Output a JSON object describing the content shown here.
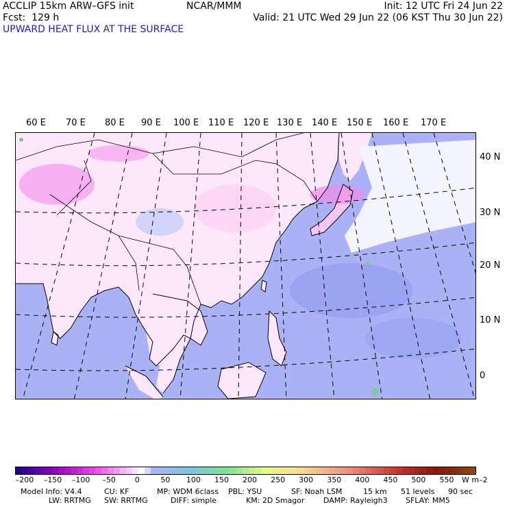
{
  "header": {
    "model": "ACCLIP 15km ARW–GFS init",
    "forecast": "Fcst:  129 h",
    "product": "UPWARD HEAT FLUX AT THE SURFACE",
    "center": "NCAR/MMM",
    "init": "Init: 12 UTC Fri 24 Jun 22",
    "valid": "Valid: 21 UTC Wed 29 Jun 22 (06 KST Thu 30 Jun 22)"
  },
  "map": {
    "lon_labels": [
      "60 E",
      "70 E",
      "80 E",
      "90 E",
      "100 E",
      "110 E",
      "120 E",
      "130 E",
      "140 E",
      "150 E",
      "160 E",
      "170 E"
    ],
    "lat_labels": [
      "40 N",
      "30 N",
      "20 N",
      "10 N",
      "0"
    ]
  },
  "colorbar": {
    "tick_labels": [
      "–200",
      "–150",
      "–100",
      "–50",
      "0",
      "50",
      "100",
      "150",
      "200",
      "250",
      "300",
      "350",
      "400",
      "450",
      "500",
      "550"
    ],
    "unit": "W m–2",
    "colors": {
      "land_positive": "#ffd9ff",
      "land_pink": "#f5a3f0",
      "ocean": "#aab2f5",
      "ocean_dark": "#8c96ee",
      "green": "#6fd08f"
    }
  },
  "model_info": {
    "line1": [
      "Model Info: V4.4",
      "CU: KF",
      "MP: WDM 6class",
      "PBL: YSU",
      "SF: Noah LSM",
      "15 km",
      "51 levels",
      "90 sec"
    ],
    "line2": [
      "LW: RRTMG",
      "SW: RRTMG",
      "DIFF: simple",
      "KM: 2D Smagor",
      "DAMP: Rayleigh3",
      "SFLAY: MM5"
    ]
  }
}
